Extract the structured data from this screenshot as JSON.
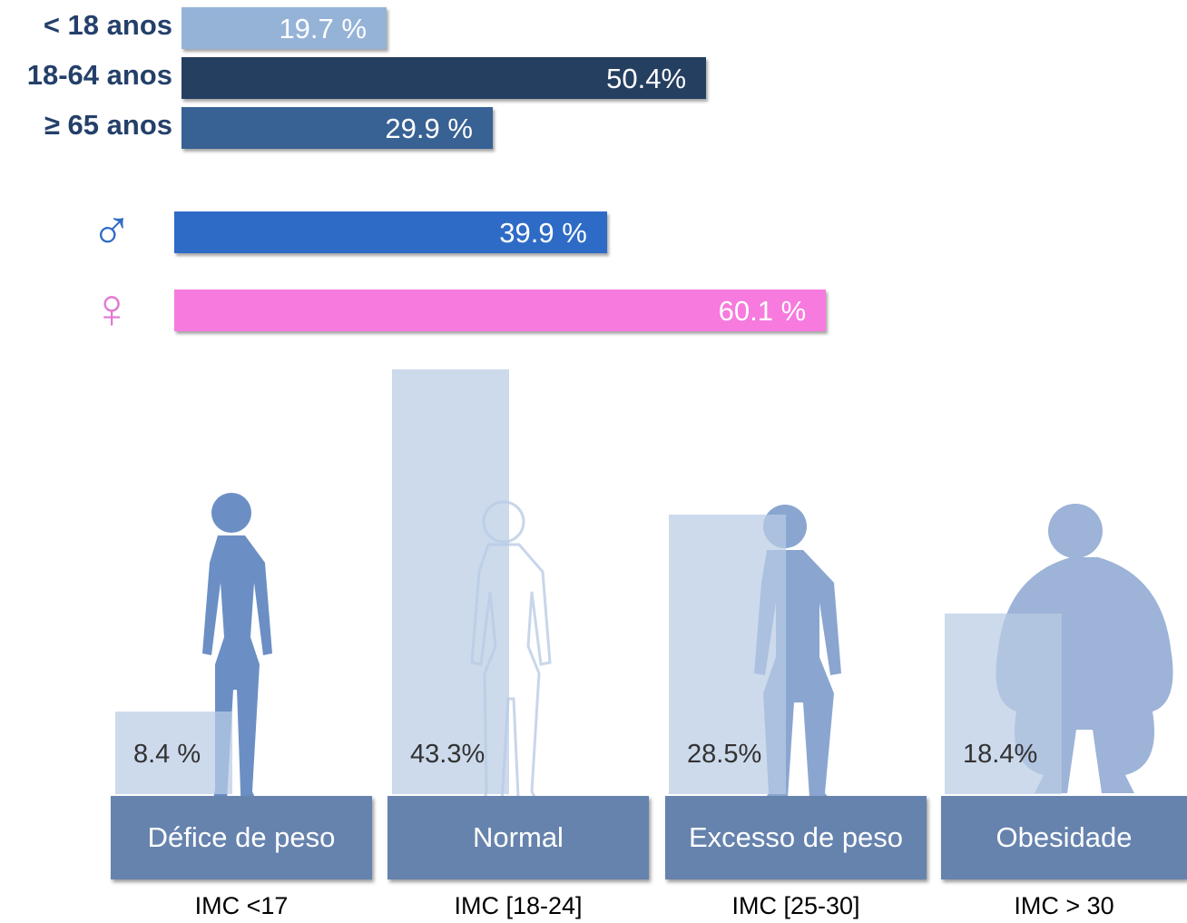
{
  "chart_data": [
    {
      "type": "hbar",
      "categories": [
        "< 18 anos",
        "18-64 anos",
        "≥ 65 anos"
      ],
      "values": [
        19.7,
        50.4,
        29.9
      ],
      "value_labels": [
        "19.7 %",
        "50.4%",
        "29.9 %"
      ],
      "colors": [
        "#95b3d7",
        "#243f60",
        "#386194"
      ]
    },
    {
      "type": "hbar",
      "categories": [
        "♂",
        "♀"
      ],
      "values": [
        39.9,
        60.1
      ],
      "value_labels": [
        "39.9 %",
        "60.1 %"
      ],
      "colors": [
        "#2e6bc6",
        "#f77ade"
      ],
      "category_colors": [
        "#2e6bc6",
        "#e27ad2"
      ]
    },
    {
      "type": "bar",
      "categories": [
        "Défice de peso",
        "Normal",
        "Excesso de peso",
        "Obesidade"
      ],
      "sublabels": [
        "IMC <17",
        "IMC [18-24]",
        "IMC [25-30]",
        "IMC > 30"
      ],
      "values": [
        8.4,
        43.3,
        28.5,
        18.4
      ],
      "value_labels": [
        "8.4 %",
        "43.3%",
        "28.5%",
        "18.4%"
      ],
      "color": "rgba(184,204,228,0.72)",
      "box_color": "#6683ae"
    }
  ]
}
